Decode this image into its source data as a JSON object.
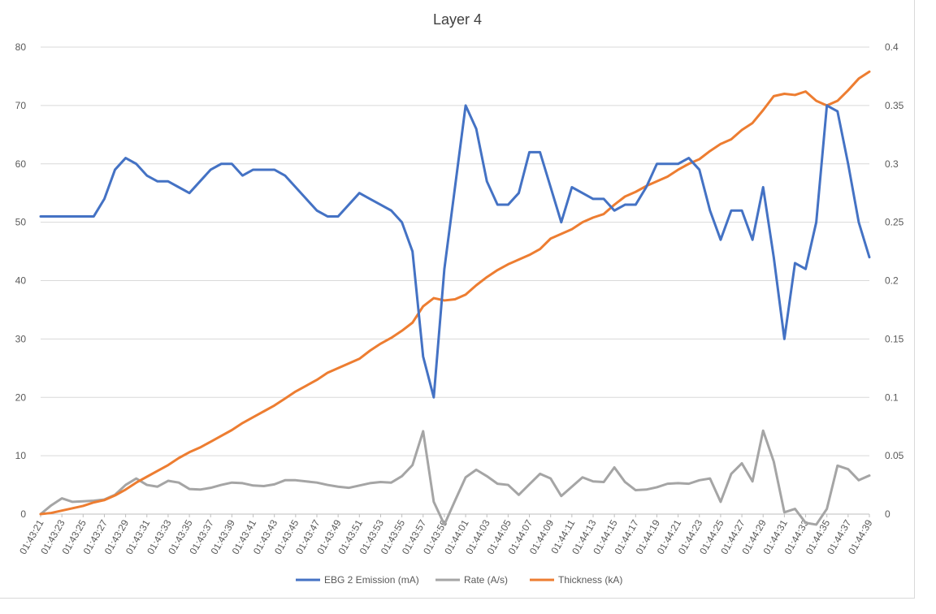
{
  "chart_data": {
    "type": "line",
    "title": "Layer 4",
    "x": [
      "01:43:21",
      "01:43:22",
      "01:43:23",
      "01:43:24",
      "01:43:25",
      "01:43:26",
      "01:43:27",
      "01:43:28",
      "01:43:29",
      "01:43:30",
      "01:43:31",
      "01:43:32",
      "01:43:33",
      "01:43:34",
      "01:43:35",
      "01:43:36",
      "01:43:37",
      "01:43:38",
      "01:43:39",
      "01:43:40",
      "01:43:41",
      "01:43:42",
      "01:43:43",
      "01:43:44",
      "01:43:45",
      "01:43:46",
      "01:43:47",
      "01:43:48",
      "01:43:49",
      "01:43:50",
      "01:43:51",
      "01:43:52",
      "01:43:53",
      "01:43:54",
      "01:43:55",
      "01:43:56",
      "01:43:57",
      "01:43:58",
      "01:43:59",
      "01:44:00",
      "01:44:01",
      "01:44:02",
      "01:44:03",
      "01:44:04",
      "01:44:05",
      "01:44:06",
      "01:44:07",
      "01:44:08",
      "01:44:09",
      "01:44:10",
      "01:44:11",
      "01:44:12",
      "01:44:13",
      "01:44:14",
      "01:44:15",
      "01:44:16",
      "01:44:17",
      "01:44:18",
      "01:44:19",
      "01:44:20",
      "01:44:21",
      "01:44:22",
      "01:44:23",
      "01:44:24",
      "01:44:25",
      "01:44:26",
      "01:44:27",
      "01:44:28",
      "01:44:29",
      "01:44:30",
      "01:44:31",
      "01:44:32",
      "01:44:33",
      "01:44:34",
      "01:44:35",
      "01:44:36",
      "01:44:37",
      "01:44:38",
      "01:44:39"
    ],
    "x_tick_labels": [
      "01:43:21",
      "01:43:23",
      "01:43:25",
      "01:43:27",
      "01:43:29",
      "01:43:31",
      "01:43:33",
      "01:43:35",
      "01:43:37",
      "01:43:39",
      "01:43:41",
      "01:43:43",
      "01:43:45",
      "01:43:47",
      "01:43:49",
      "01:43:51",
      "01:43:53",
      "01:43:55",
      "01:43:57",
      "01:43:59",
      "01:44:01",
      "01:44:03",
      "01:44:05",
      "01:44:07",
      "01:44:09",
      "01:44:11",
      "01:44:13",
      "01:44:15",
      "01:44:17",
      "01:44:19",
      "01:44:21",
      "01:44:23",
      "01:44:25",
      "01:44:27",
      "01:44:29",
      "01:44:31",
      "01:44:33",
      "01:44:35",
      "01:44:37",
      "01:44:39"
    ],
    "y_left": {
      "ylim": [
        0,
        80
      ],
      "ticks": [
        "0",
        "10",
        "20",
        "30",
        "40",
        "50",
        "60",
        "70",
        "80"
      ]
    },
    "y_right": {
      "ylim": [
        0,
        0.4
      ],
      "ticks": [
        "0",
        "0.05",
        "0.1",
        "0.15",
        "0.2",
        "0.25",
        "0.3",
        "0.35",
        "0.4"
      ]
    },
    "grid": true,
    "legend_position": "bottom",
    "series": [
      {
        "name": "EBG 2 Emission (mA)",
        "axis": "left",
        "color": "#4472C4",
        "values": [
          51,
          51,
          51,
          51,
          51,
          51,
          54,
          59,
          61,
          60,
          58,
          57,
          57,
          56,
          55,
          57,
          59,
          60,
          60,
          58,
          59,
          59,
          59,
          58,
          56,
          54,
          52,
          51,
          51,
          53,
          55,
          54,
          53,
          52,
          50,
          45,
          27,
          20,
          42,
          56,
          70,
          66,
          57,
          53,
          53,
          55,
          62,
          62,
          56,
          50,
          56,
          55,
          54,
          54,
          52,
          53,
          53,
          56,
          60,
          60,
          60,
          61,
          59,
          52,
          47,
          52,
          52,
          47,
          56,
          44,
          30,
          43,
          42,
          50,
          70,
          69,
          60,
          50,
          44
        ]
      },
      {
        "name": "Rate (A/s)",
        "axis": "left",
        "color": "#A5A5A5",
        "values": [
          0,
          1.5,
          2.7,
          2.1,
          2.2,
          2.3,
          2.5,
          3.3,
          5,
          6.1,
          5,
          4.7,
          5.7,
          5.4,
          4.3,
          4.2,
          4.5,
          5,
          5.4,
          5.3,
          4.9,
          4.8,
          5.1,
          5.8,
          5.8,
          5.6,
          5.4,
          5,
          4.7,
          4.5,
          4.9,
          5.3,
          5.5,
          5.4,
          6.5,
          8.4,
          14.2,
          2.1,
          -1.8,
          2.3,
          6.3,
          7.6,
          6.5,
          5.2,
          5,
          3.3,
          5.1,
          6.9,
          6.1,
          3.1,
          4.7,
          6.3,
          5.6,
          5.5,
          8,
          5.5,
          4.1,
          4.2,
          4.6,
          5.2,
          5.3,
          5.2,
          5.8,
          6.1,
          2.1,
          6.9,
          8.7,
          5.6,
          14.3,
          9,
          0.3,
          0.9,
          -1.5,
          -1.8,
          0.9,
          8.3,
          7.7,
          5.8,
          6.6
        ]
      },
      {
        "name": "Thickness (kA)",
        "axis": "right",
        "color": "#ED7D31",
        "values": [
          0,
          0.001,
          0.003,
          0.005,
          0.007,
          0.01,
          0.012,
          0.016,
          0.021,
          0.027,
          0.032,
          0.037,
          0.042,
          0.048,
          0.053,
          0.057,
          0.062,
          0.067,
          0.072,
          0.078,
          0.083,
          0.088,
          0.093,
          0.099,
          0.105,
          0.11,
          0.115,
          0.121,
          0.125,
          0.129,
          0.133,
          0.14,
          0.146,
          0.151,
          0.157,
          0.164,
          0.178,
          0.185,
          0.183,
          0.184,
          0.188,
          0.196,
          0.203,
          0.209,
          0.214,
          0.218,
          0.222,
          0.227,
          0.236,
          0.24,
          0.244,
          0.25,
          0.254,
          0.257,
          0.265,
          0.272,
          0.276,
          0.281,
          0.285,
          0.289,
          0.295,
          0.3,
          0.304,
          0.311,
          0.317,
          0.321,
          0.329,
          0.335,
          0.346,
          0.358,
          0.36,
          0.359,
          0.362,
          0.354,
          0.35,
          0.354,
          0.363,
          0.373,
          0.379
        ]
      }
    ]
  }
}
